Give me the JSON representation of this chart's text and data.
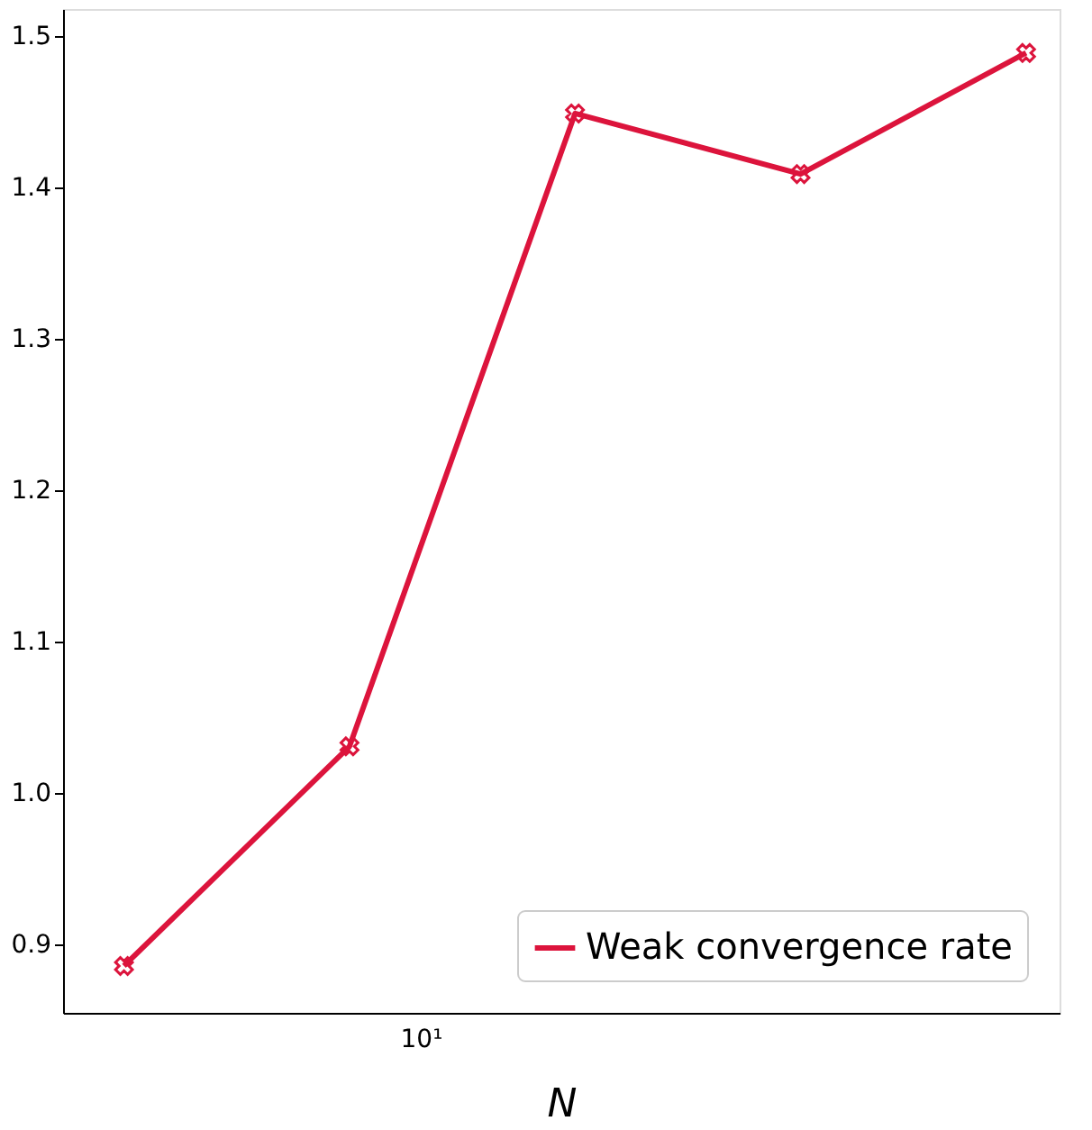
{
  "chart_data": {
    "type": "line",
    "xlabel": "N",
    "categories": [
      null,
      null,
      null,
      null,
      null
    ],
    "series": [
      {
        "name": "Weak convergence rate",
        "color": "#dc143c",
        "values": [
          0.886,
          1.031,
          1.449,
          1.409,
          1.489
        ]
      }
    ],
    "annotations": [
      "10¹"
    ],
    "ylim": [
      0.855,
      1.518
    ],
    "yticks": [
      {
        "value": 0.9,
        "label": "0.9"
      },
      {
        "value": 1.0,
        "label": "1.0"
      },
      {
        "value": 1.1,
        "label": "1.1"
      },
      {
        "value": 1.2,
        "label": "1.2"
      },
      {
        "value": 1.3,
        "label": "1.3"
      },
      {
        "value": 1.4,
        "label": "1.4"
      },
      {
        "value": 1.5,
        "label": "1.5"
      }
    ],
    "grid": false,
    "legend": "bottom right",
    "marker": "cross",
    "line_style": "solid"
  }
}
